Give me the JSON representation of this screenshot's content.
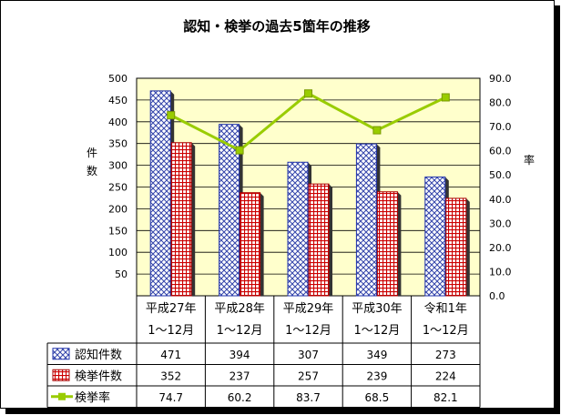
{
  "chart_data": {
    "type": "bar",
    "title": "認知・検挙の過去5箇年の推移",
    "ylabel_left": "件数",
    "ylabel_right": "率",
    "categories": [
      [
        "平成27年",
        "1～12月"
      ],
      [
        "平成28年",
        "1～12月"
      ],
      [
        "平成29年",
        "1～12月"
      ],
      [
        "平成30年",
        "1～12月"
      ],
      [
        "令和1年",
        "1～12月"
      ]
    ],
    "series": [
      {
        "name": "認知件数",
        "type": "bar",
        "axis": "left",
        "values": [
          471,
          394,
          307,
          349,
          273
        ]
      },
      {
        "name": "検挙件数",
        "type": "bar",
        "axis": "left",
        "values": [
          352,
          237,
          257,
          239,
          224
        ]
      },
      {
        "name": "検挙率",
        "type": "line",
        "axis": "right",
        "values": [
          74.7,
          60.2,
          83.7,
          68.5,
          82.1
        ]
      }
    ],
    "left_axis": {
      "min": 0,
      "max": 500,
      "step": 50,
      "ticks": [
        "",
        "50",
        "100",
        "150",
        "200",
        "250",
        "300",
        "350",
        "400",
        "450",
        "500"
      ]
    },
    "right_axis": {
      "min": 0,
      "max": 90,
      "step": 10,
      "ticks": [
        "0.0",
        "10.0",
        "20.0",
        "30.0",
        "40.0",
        "50.0",
        "60.0",
        "70.0",
        "80.0",
        "90.0"
      ]
    },
    "data_table": {
      "rows": [
        [
          "471",
          "394",
          "307",
          "349",
          "273"
        ],
        [
          "352",
          "237",
          "257",
          "239",
          "224"
        ],
        [
          "74.7",
          "60.2",
          "83.7",
          "68.5",
          "82.1"
        ]
      ]
    },
    "grid": true,
    "legend": "data-table",
    "colors": {
      "plot_background": "#ffffcc",
      "bar1": "#3333aa",
      "bar2": "#cc0000",
      "line": "#99cc00"
    }
  }
}
